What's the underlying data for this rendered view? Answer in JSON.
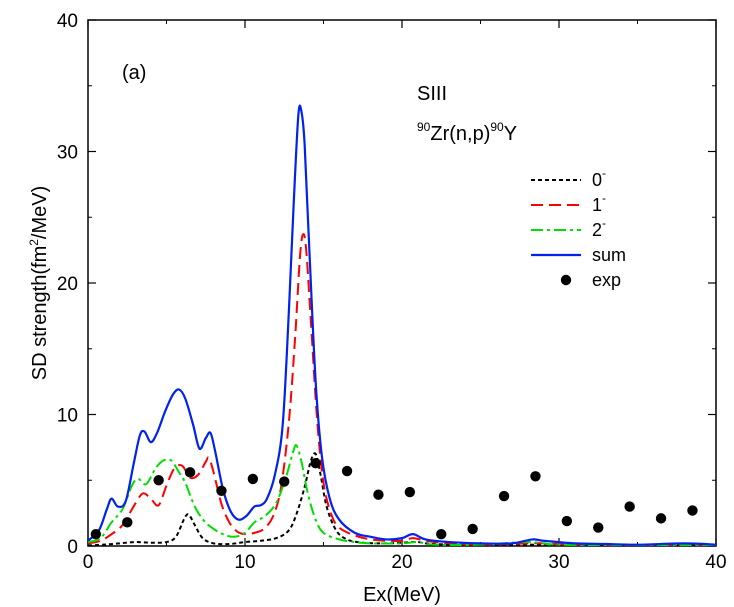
{
  "chart_data": {
    "type": "line",
    "panel_label": "(a)",
    "annotations": {
      "force": "SIII",
      "reaction_pre": "90",
      "reaction_mid": "Zr(n,p)",
      "reaction_sup2": "90",
      "reaction_post": "Y"
    },
    "xlabel": "Ex(MeV)",
    "ylabel_pre": "SD strength(fm",
    "ylabel_sup": "2",
    "ylabel_post": "/MeV)",
    "xlim": [
      0,
      40
    ],
    "ylim": [
      0,
      40
    ],
    "xticks": [
      0,
      10,
      20,
      30,
      40
    ],
    "yticks": [
      0,
      10,
      20,
      30,
      40
    ],
    "legend_position": "top-right",
    "series": [
      {
        "name": "0",
        "name_sup": "-",
        "color": "#000000",
        "style": "dotted",
        "points": [
          [
            0,
            0.05
          ],
          [
            1,
            0.1
          ],
          [
            2,
            0.2
          ],
          [
            3,
            0.3
          ],
          [
            4,
            0.25
          ],
          [
            5,
            0.3
          ],
          [
            5.6,
            0.7
          ],
          [
            6.1,
            2.0
          ],
          [
            6.4,
            2.4
          ],
          [
            6.8,
            1.6
          ],
          [
            7.3,
            0.6
          ],
          [
            8,
            0.2
          ],
          [
            9,
            0.15
          ],
          [
            10,
            0.3
          ],
          [
            11,
            0.4
          ],
          [
            12,
            0.6
          ],
          [
            12.8,
            1.2
          ],
          [
            13.3,
            2.5
          ],
          [
            13.8,
            4.5
          ],
          [
            14.2,
            6.5
          ],
          [
            14.5,
            7.0
          ],
          [
            14.8,
            5.5
          ],
          [
            15.2,
            3.0
          ],
          [
            15.8,
            1.2
          ],
          [
            16.5,
            0.5
          ],
          [
            17.5,
            0.25
          ],
          [
            19,
            0.2
          ],
          [
            20,
            0.25
          ],
          [
            21,
            0.3
          ],
          [
            22,
            0.15
          ],
          [
            25,
            0.08
          ],
          [
            28,
            0.1
          ],
          [
            30,
            0.08
          ],
          [
            35,
            0.05
          ],
          [
            40,
            0.03
          ]
        ]
      },
      {
        "name": "1",
        "name_sup": "-",
        "color": "#ff0000",
        "style": "dashed",
        "points": [
          [
            0,
            0.2
          ],
          [
            0.8,
            0.4
          ],
          [
            1.5,
            0.9
          ],
          [
            2.2,
            1.6
          ],
          [
            3,
            3.2
          ],
          [
            3.5,
            4.0
          ],
          [
            4,
            3.6
          ],
          [
            4.5,
            3.1
          ],
          [
            5,
            4.6
          ],
          [
            5.5,
            5.9
          ],
          [
            6,
            6.1
          ],
          [
            6.5,
            5.2
          ],
          [
            7,
            5.4
          ],
          [
            7.5,
            6.4
          ],
          [
            7.7,
            6.7
          ],
          [
            8,
            5.6
          ],
          [
            8.5,
            3.2
          ],
          [
            9,
            1.8
          ],
          [
            9.5,
            1.1
          ],
          [
            10,
            0.9
          ],
          [
            10.6,
            1.0
          ],
          [
            11.2,
            1.3
          ],
          [
            11.8,
            2.3
          ],
          [
            12.3,
            4.5
          ],
          [
            12.8,
            9.5
          ],
          [
            13.2,
            16.0
          ],
          [
            13.5,
            22.0
          ],
          [
            13.7,
            23.7
          ],
          [
            13.9,
            22.5
          ],
          [
            14.2,
            17.0
          ],
          [
            14.6,
            9.5
          ],
          [
            15,
            4.8
          ],
          [
            15.5,
            2.4
          ],
          [
            16,
            1.4
          ],
          [
            17,
            0.8
          ],
          [
            18,
            0.5
          ],
          [
            19,
            0.4
          ],
          [
            20,
            0.4
          ],
          [
            20.7,
            0.6
          ],
          [
            21.5,
            0.4
          ],
          [
            23,
            0.2
          ],
          [
            25,
            0.1
          ],
          [
            28,
            0.2
          ],
          [
            29,
            0.2
          ],
          [
            31,
            0.1
          ],
          [
            35,
            0.05
          ],
          [
            38,
            0.1
          ],
          [
            40,
            0.05
          ]
        ]
      },
      {
        "name": "2",
        "name_sup": "-",
        "color": "#00dd00",
        "style": "dashdot",
        "points": [
          [
            0,
            0.3
          ],
          [
            0.8,
            0.6
          ],
          [
            1.5,
            1.8
          ],
          [
            2.2,
            2.8
          ],
          [
            2.8,
            4.6
          ],
          [
            3.2,
            5.1
          ],
          [
            3.7,
            4.7
          ],
          [
            4.3,
            5.9
          ],
          [
            4.8,
            6.5
          ],
          [
            5.3,
            6.5
          ],
          [
            5.8,
            5.6
          ],
          [
            6.2,
            4.8
          ],
          [
            6.8,
            3.0
          ],
          [
            7.4,
            1.9
          ],
          [
            8,
            1.3
          ],
          [
            8.6,
            0.9
          ],
          [
            9.3,
            0.7
          ],
          [
            10,
            1.0
          ],
          [
            10.6,
            1.8
          ],
          [
            11.3,
            2.3
          ],
          [
            12,
            3.3
          ],
          [
            12.6,
            5.2
          ],
          [
            13.1,
            7.3
          ],
          [
            13.3,
            7.6
          ],
          [
            13.6,
            6.4
          ],
          [
            14,
            4.0
          ],
          [
            14.5,
            2.0
          ],
          [
            15,
            1.0
          ],
          [
            16,
            0.5
          ],
          [
            17,
            0.3
          ],
          [
            18,
            0.2
          ],
          [
            20,
            0.2
          ],
          [
            21,
            0.3
          ],
          [
            22,
            0.1
          ],
          [
            25,
            0.1
          ],
          [
            28,
            0.3
          ],
          [
            30,
            0.1
          ],
          [
            35,
            0.05
          ],
          [
            40,
            0.03
          ]
        ]
      },
      {
        "name": "sum",
        "color": "#0022ee",
        "style": "solid",
        "points": [
          [
            0,
            0.4
          ],
          [
            0.7,
            1.2
          ],
          [
            1.2,
            2.8
          ],
          [
            1.5,
            3.6
          ],
          [
            1.9,
            3.0
          ],
          [
            2.4,
            3.4
          ],
          [
            2.9,
            6.2
          ],
          [
            3.3,
            8.4
          ],
          [
            3.6,
            8.7
          ],
          [
            4.0,
            7.9
          ],
          [
            4.4,
            8.6
          ],
          [
            4.9,
            10.2
          ],
          [
            5.4,
            11.5
          ],
          [
            5.8,
            11.9
          ],
          [
            6.2,
            11.2
          ],
          [
            6.7,
            9.2
          ],
          [
            7.1,
            7.4
          ],
          [
            7.5,
            8.2
          ],
          [
            7.8,
            8.6
          ],
          [
            8.1,
            7.2
          ],
          [
            8.6,
            4.3
          ],
          [
            9.1,
            2.6
          ],
          [
            9.6,
            2.0
          ],
          [
            10.1,
            2.3
          ],
          [
            10.6,
            3.0
          ],
          [
            11.0,
            3.1
          ],
          [
            11.4,
            3.6
          ],
          [
            11.9,
            5.4
          ],
          [
            12.4,
            9.2
          ],
          [
            12.8,
            18.0
          ],
          [
            13.1,
            26.0
          ],
          [
            13.4,
            32.8
          ],
          [
            13.6,
            33.0
          ],
          [
            13.8,
            30.5
          ],
          [
            14.1,
            22.5
          ],
          [
            14.5,
            12.5
          ],
          [
            14.9,
            6.8
          ],
          [
            15.4,
            3.6
          ],
          [
            16.0,
            2.0
          ],
          [
            17,
            1.0
          ],
          [
            18,
            0.7
          ],
          [
            19,
            0.5
          ],
          [
            20,
            0.6
          ],
          [
            20.7,
            0.9
          ],
          [
            21.5,
            0.5
          ],
          [
            23,
            0.3
          ],
          [
            25,
            0.2
          ],
          [
            27,
            0.2
          ],
          [
            28.3,
            0.5
          ],
          [
            29,
            0.4
          ],
          [
            31,
            0.2
          ],
          [
            33,
            0.15
          ],
          [
            35,
            0.1
          ],
          [
            38,
            0.2
          ],
          [
            40,
            0.1
          ]
        ]
      },
      {
        "name": "exp",
        "color": "#000000",
        "style": "markers",
        "points": [
          [
            0.5,
            0.9
          ],
          [
            2.5,
            1.8
          ],
          [
            4.5,
            5.0
          ],
          [
            6.5,
            5.6
          ],
          [
            8.5,
            4.2
          ],
          [
            10.5,
            5.1
          ],
          [
            12.5,
            4.9
          ],
          [
            14.5,
            6.3
          ],
          [
            16.5,
            5.7
          ],
          [
            18.5,
            3.9
          ],
          [
            20.5,
            4.1
          ],
          [
            22.5,
            0.9
          ],
          [
            24.5,
            1.3
          ],
          [
            26.5,
            3.8
          ],
          [
            28.5,
            5.3
          ],
          [
            30.5,
            1.9
          ],
          [
            32.5,
            1.4
          ],
          [
            34.5,
            3.0
          ],
          [
            36.5,
            2.1
          ],
          [
            38.5,
            2.7
          ]
        ]
      }
    ]
  }
}
